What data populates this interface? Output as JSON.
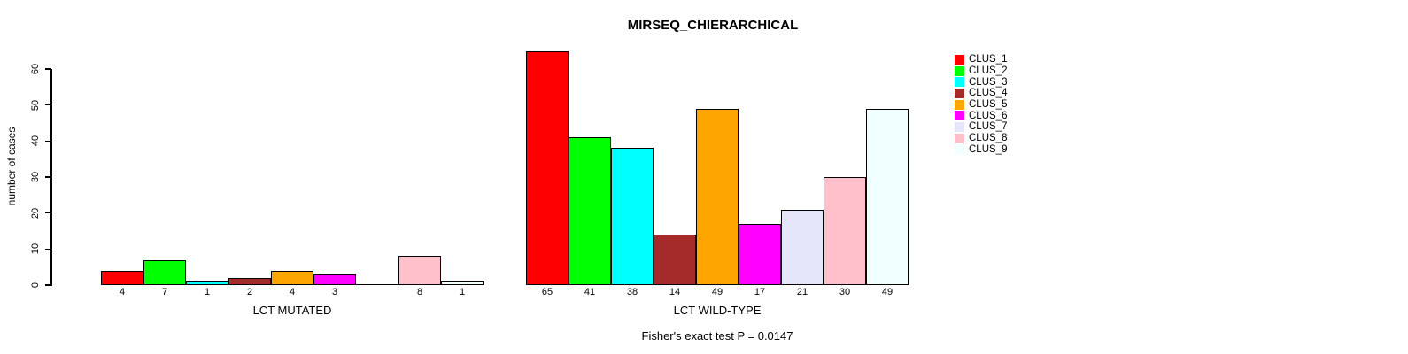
{
  "chart_data": {
    "type": "bar",
    "title": "MIRSEQ_CHIERARCHICAL",
    "ylabel": "number of cases",
    "ylim": [
      0,
      60
    ],
    "yticks": [
      0,
      10,
      20,
      30,
      40,
      50,
      60
    ],
    "grid": false,
    "legend_position": "right",
    "series": [
      {
        "name": "CLUS_1",
        "color": "#FF0000"
      },
      {
        "name": "CLUS_2",
        "color": "#00FF00"
      },
      {
        "name": "CLUS_3",
        "color": "#00FFFF"
      },
      {
        "name": "CLUS_4",
        "color": "#A52A2A"
      },
      {
        "name": "CLUS_5",
        "color": "#FFA500"
      },
      {
        "name": "CLUS_6",
        "color": "#FF00FF"
      },
      {
        "name": "CLUS_7",
        "color": "#E6E6FA"
      },
      {
        "name": "CLUS_8",
        "color": "#FFC0CB"
      },
      {
        "name": "CLUS_9",
        "color": "#F0FFFF"
      }
    ],
    "groups": [
      {
        "label": "LCT MUTATED",
        "values": [
          4,
          7,
          1,
          2,
          4,
          3,
          0,
          8,
          1
        ]
      },
      {
        "label": "LCT WILD-TYPE",
        "values": [
          65,
          41,
          38,
          14,
          49,
          17,
          21,
          30,
          49
        ]
      }
    ],
    "footnote": "Fisher's exact test P = 0.0147"
  }
}
